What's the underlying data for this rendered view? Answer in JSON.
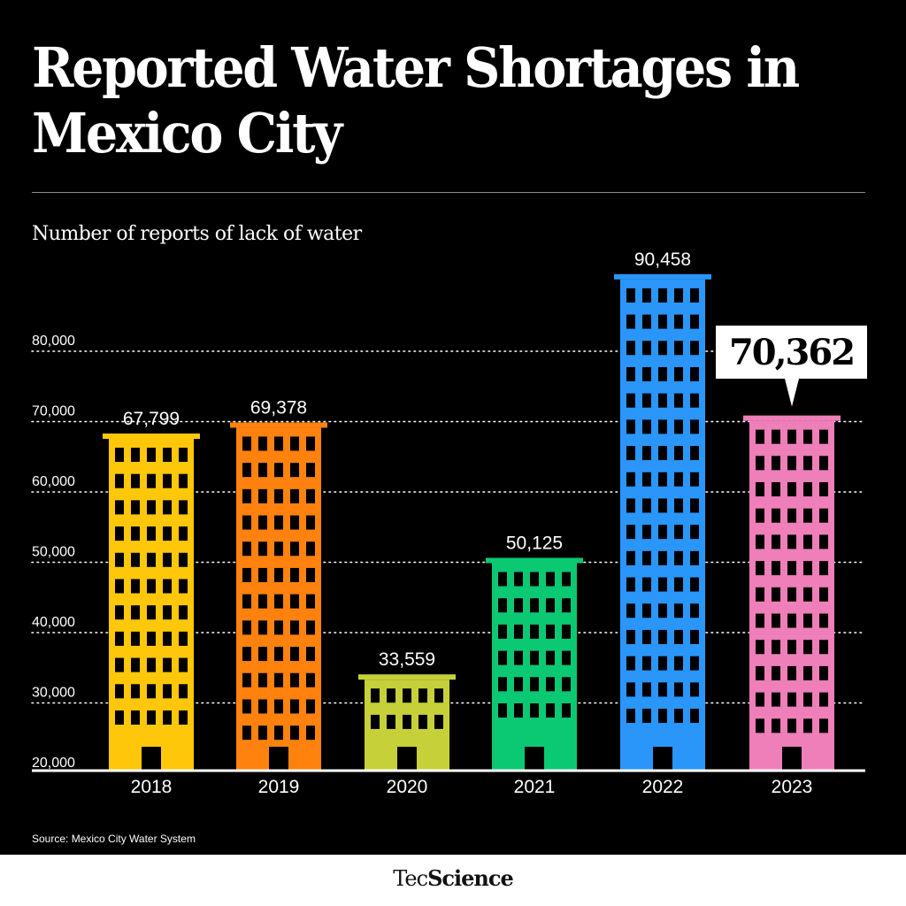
{
  "header": {
    "title": "Reported Water Shortages in Mexico City",
    "subtitle": "Number of reports of lack of water"
  },
  "source": "Source: Mexico City Water System",
  "brand": {
    "part1": "Tec",
    "part2": "Science"
  },
  "chart_data": {
    "type": "bar",
    "style": "buildings",
    "title": "Reported Water Shortages in Mexico City",
    "ylabel": "Number of reports of lack of water",
    "xlabel": "",
    "categories": [
      "2018",
      "2019",
      "2020",
      "2021",
      "2022",
      "2023"
    ],
    "values": [
      67799,
      69378,
      33559,
      50125,
      90458,
      70362
    ],
    "value_labels": [
      "67,799",
      "69,378",
      "33,559",
      "50,125",
      "90,458",
      "70,362"
    ],
    "colors": [
      "#FFC709",
      "#FF820E",
      "#C6D13A",
      "#0BC872",
      "#2A96FA",
      "#EE7FB8"
    ],
    "highlight_index": 5,
    "highlight_color": "#FFFFFF",
    "ylim": [
      20000,
      90000
    ],
    "yticks": [
      20000,
      30000,
      40000,
      50000,
      60000,
      70000,
      80000
    ],
    "ytick_labels": [
      "20,000",
      "30,000",
      "40,000",
      "50,000",
      "60,000",
      "70,000",
      "80,000"
    ],
    "grid": true,
    "grid_style": "dotted",
    "legend": "none"
  }
}
